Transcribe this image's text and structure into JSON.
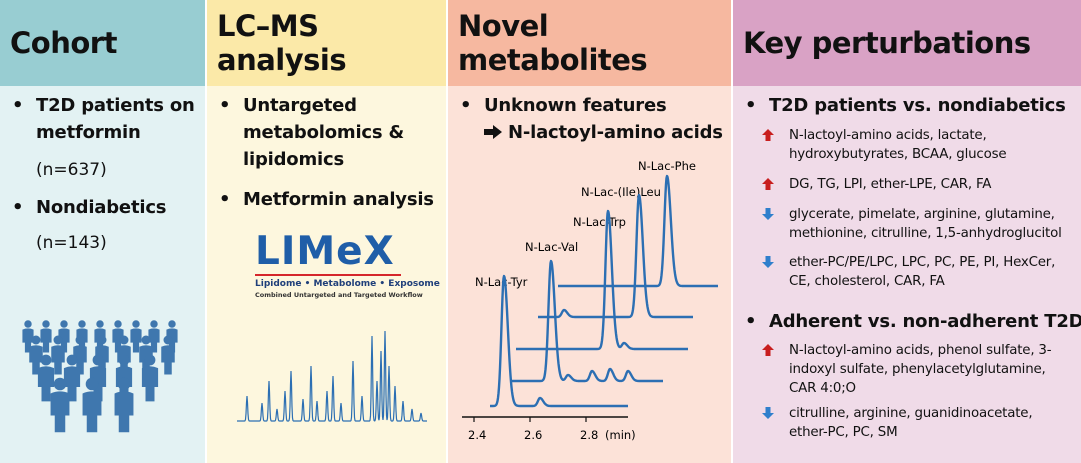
{
  "panels": {
    "cohort": {
      "title": "Cohort",
      "bullets": [
        {
          "text": "T2D patients on metformin",
          "sub": "(n=637)"
        },
        {
          "text": "Nondiabetics",
          "sub": "(n=143)"
        }
      ],
      "icon": "people-crowd-icon"
    },
    "lcms": {
      "title": "LC–MS analysis",
      "bullets": [
        {
          "text": "Untargeted metabolomics & lipidomics"
        },
        {
          "text": "Metformin analysis"
        }
      ],
      "logo": {
        "main": "LIMeX",
        "subtitle": "Lipidome • Metabolome • Exposome",
        "tagline": "Combined Untargeted and Targeted Workflow"
      }
    },
    "novel": {
      "title": "Novel metabolites",
      "bullet": "Unknown features",
      "result": "N-lactoyl-amino acids",
      "peaks": [
        "N-Lac-Tyr",
        "N-Lac-Val",
        "N-Lac-Trp",
        "N-Lac-(Ile)Leu",
        "N-Lac-Phe"
      ],
      "x_ticks": [
        "2.4",
        "2.6",
        "2.8"
      ],
      "x_unit": "(min)"
    },
    "key": {
      "title": "Key perturbations",
      "groups": [
        {
          "heading": "T2D patients vs. nondiabetics",
          "items": [
            {
              "dir": "up",
              "text": "N-lactoyl-amino acids, lactate, hydroxybutyrates, BCAA, glucose"
            },
            {
              "dir": "up",
              "text": "DG, TG, LPI, ether-LPE, CAR, FA"
            },
            {
              "dir": "down",
              "text": "glycerate, pimelate, arginine, glutamine, methionine, citrulline, 1,5-anhydroglucitol"
            },
            {
              "dir": "down",
              "text": "ether-PC/PE/LPC, LPC, PC, PE, PI, HexCer, CE, cholesterol, CAR, FA"
            }
          ]
        },
        {
          "heading": "Adherent vs. non-adherent T2D",
          "items": [
            {
              "dir": "up",
              "text": "N-lactoyl-amino acids, phenol sulfate, 3-indoxyl sulfate, phenylacetylglutamine, CAR 4:0;O"
            },
            {
              "dir": "down",
              "text": "citrulline, arginine, guanidinoacetate, ether-PC, PC, SM"
            }
          ]
        }
      ]
    }
  },
  "colors": {
    "line_blue": "#2c6fb3",
    "people_blue": "#3f77ae",
    "up_red": "#c81e1e",
    "down_blue": "#2f7fcc",
    "logo_blue": "#1f5ea8",
    "logo_red": "#d5262b"
  }
}
